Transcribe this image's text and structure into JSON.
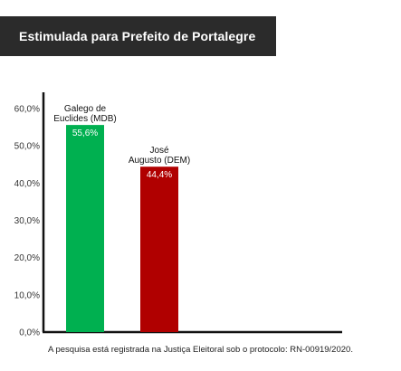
{
  "header": {
    "title": "Estimulada para Prefeito de Portalegre"
  },
  "footnote": "A pesquisa está registrada na Justiça Eleitoral sob o protocolo: RN-00919/2020.",
  "chart_data": {
    "type": "bar",
    "categories": [
      [
        "Galego de",
        "Euclides (MDB)"
      ],
      [
        "José",
        "Augusto (DEM)"
      ]
    ],
    "values": [
      55.6,
      44.4
    ],
    "value_labels": [
      "55,6%",
      "44,4%"
    ],
    "colors": [
      "#00b050",
      "#b00000"
    ],
    "title": "",
    "xlabel": "",
    "ylabel": "",
    "ylim": [
      0,
      60
    ],
    "yticks": [
      0,
      10,
      20,
      30,
      40,
      50,
      60
    ],
    "ytick_labels": [
      "0,0%",
      "10,0%",
      "20,0%",
      "30,0%",
      "40,0%",
      "50,0%",
      "60,0%"
    ],
    "grid": false,
    "legend": false
  }
}
